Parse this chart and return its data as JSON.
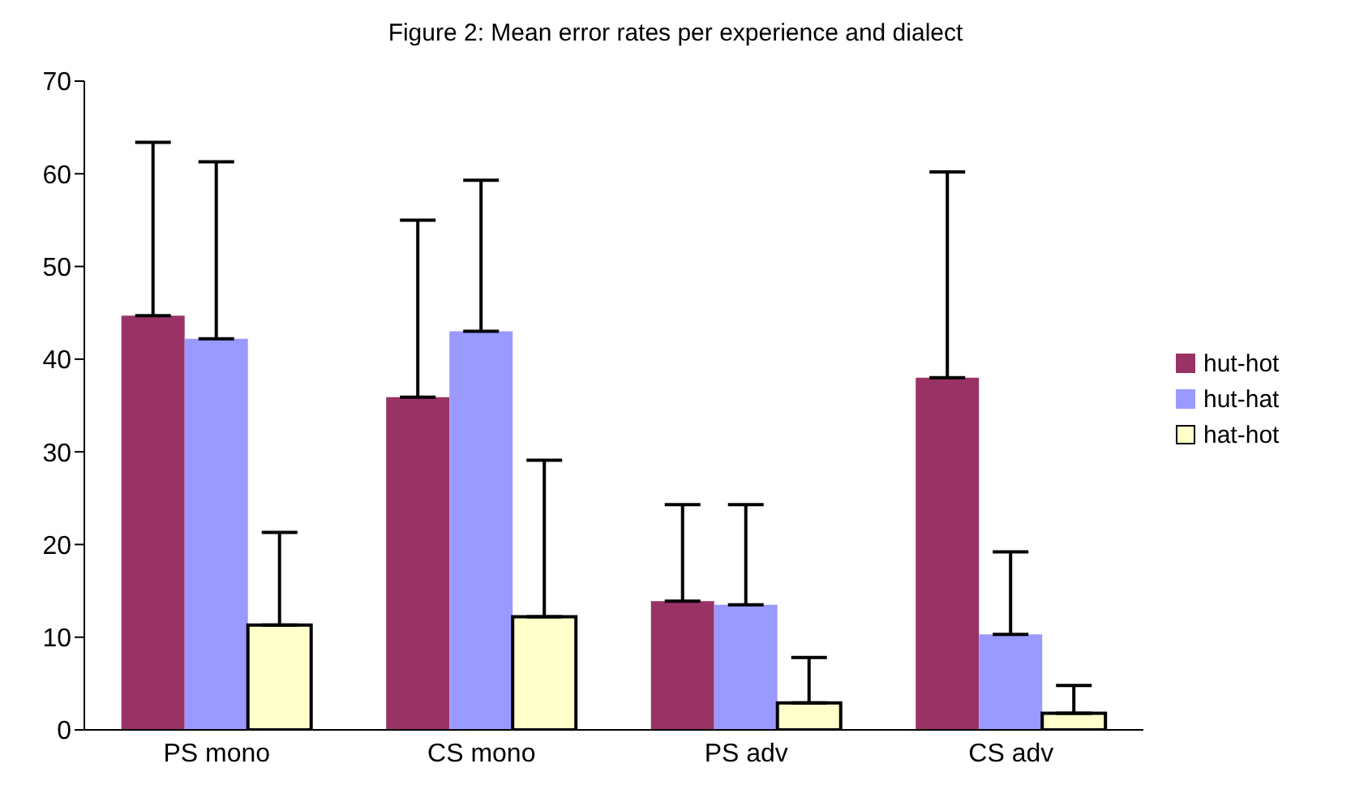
{
  "chart_data": {
    "type": "bar",
    "title": "Figure 2: Mean error rates per experience and dialect",
    "categories": [
      "PS mono",
      "CS mono",
      "PS adv",
      "CS adv"
    ],
    "series": [
      {
        "name": "hut-hot",
        "color": "#993366",
        "values": [
          44.7,
          35.9,
          13.9,
          38.0
        ],
        "errors": [
          [
            44.7,
            63.4
          ],
          [
            35.9,
            55.0
          ],
          [
            13.9,
            24.3
          ],
          [
            38.0,
            60.2
          ]
        ]
      },
      {
        "name": "hut-hat",
        "color": "#9999ff",
        "values": [
          42.2,
          43.0,
          13.5,
          10.3
        ],
        "errors": [
          [
            42.2,
            61.3
          ],
          [
            43.0,
            59.3
          ],
          [
            13.5,
            24.3
          ],
          [
            10.3,
            19.2
          ]
        ]
      },
      {
        "name": "hat-hot",
        "color": "#ffffcc",
        "values": [
          11.3,
          12.2,
          2.9,
          1.8
        ],
        "errors": [
          [
            11.3,
            21.3
          ],
          [
            12.2,
            29.1
          ],
          [
            2.9,
            7.8
          ],
          [
            1.8,
            4.8
          ]
        ]
      }
    ],
    "ylim": [
      0,
      70
    ],
    "yticks": [
      0,
      10,
      20,
      30,
      40,
      50,
      60,
      70
    ],
    "grid": false,
    "legend": "right"
  }
}
